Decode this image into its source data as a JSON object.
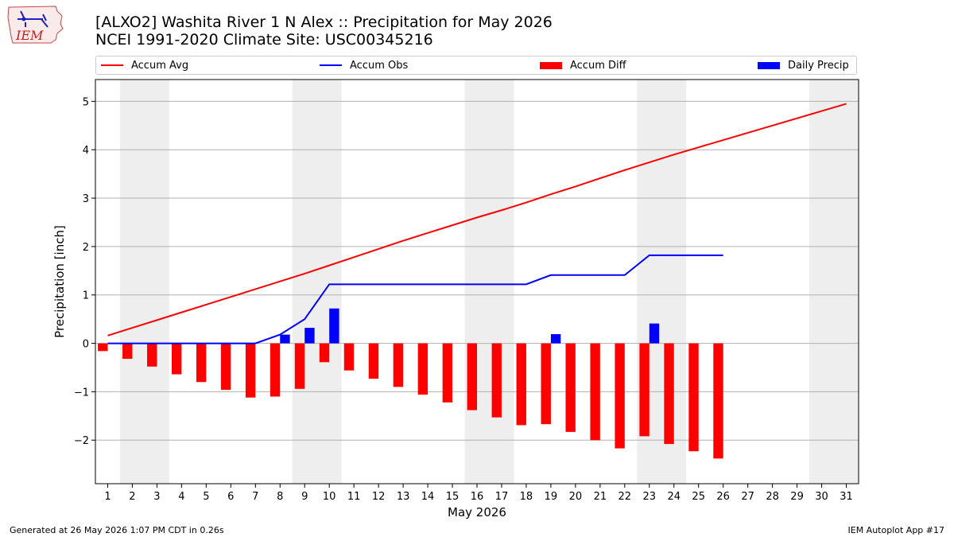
{
  "header": {
    "title_line1": "[ALXO2] Washita River 1 N Alex :: Precipitation for May 2026",
    "title_line2": "NCEI 1991-2020 Climate Site: USC00345216",
    "logo_text": "IEM"
  },
  "legend": [
    {
      "label": "Accum Avg",
      "kind": "line",
      "color": "#ff0000"
    },
    {
      "label": "Accum Obs",
      "kind": "line",
      "color": "#0000ff"
    },
    {
      "label": "Accum Diff",
      "kind": "bar",
      "color": "#ff0000"
    },
    {
      "label": "Daily Precip",
      "kind": "bar",
      "color": "#0000ff"
    }
  ],
  "footer": {
    "generated": "Generated at 26 May 2026 1:07 PM CDT in 0.26s",
    "app": "IEM Autoplot App #17"
  },
  "chart_data": {
    "type": "bar",
    "xlabel": "May 2026",
    "ylabel": "Precipitation [inch]",
    "xlim": [
      0.5,
      31.5
    ],
    "ylim": [
      -2.9,
      5.45
    ],
    "yticks": [
      5,
      4,
      3,
      2,
      1,
      0,
      -1,
      -2
    ],
    "ytick_labels": [
      "5",
      "4",
      "3",
      "2",
      "1",
      "0",
      "−1",
      "−2"
    ],
    "xticks": [
      1,
      2,
      3,
      4,
      5,
      6,
      7,
      8,
      9,
      10,
      11,
      12,
      13,
      14,
      15,
      16,
      17,
      18,
      19,
      20,
      21,
      22,
      23,
      24,
      25,
      26,
      27,
      28,
      29,
      30,
      31
    ],
    "grid": "horizontal",
    "weekend_shading": [
      [
        1.5,
        3.5
      ],
      [
        8.5,
        10.5
      ],
      [
        15.5,
        17.5
      ],
      [
        22.5,
        24.5
      ],
      [
        29.5,
        31.5
      ]
    ],
    "series": [
      {
        "name": "Accum Avg",
        "kind": "line",
        "color": "#ff0000",
        "x": [
          1,
          2,
          3,
          4,
          5,
          6,
          7,
          8,
          9,
          10,
          11,
          12,
          13,
          14,
          15,
          16,
          17,
          18,
          19,
          20,
          21,
          22,
          23,
          24,
          25,
          26,
          27,
          28,
          29,
          30,
          31
        ],
        "values": [
          0.16,
          0.32,
          0.48,
          0.64,
          0.8,
          0.96,
          1.12,
          1.28,
          1.44,
          1.61,
          1.78,
          1.95,
          2.12,
          2.28,
          2.44,
          2.6,
          2.75,
          2.91,
          3.08,
          3.24,
          3.41,
          3.58,
          3.74,
          3.9,
          4.05,
          4.2,
          4.35,
          4.5,
          4.65,
          4.8,
          4.95
        ]
      },
      {
        "name": "Accum Obs",
        "kind": "line",
        "color": "#0000ff",
        "x": [
          1,
          2,
          3,
          4,
          5,
          6,
          7,
          8,
          9,
          10,
          11,
          12,
          13,
          14,
          15,
          16,
          17,
          18,
          19,
          20,
          21,
          22,
          23,
          24,
          25,
          26
        ],
        "values": [
          0,
          0,
          0,
          0,
          0,
          0,
          0,
          0.18,
          0.5,
          1.22,
          1.22,
          1.22,
          1.22,
          1.22,
          1.22,
          1.22,
          1.22,
          1.22,
          1.41,
          1.41,
          1.41,
          1.41,
          1.82,
          1.82,
          1.82,
          1.82
        ]
      },
      {
        "name": "Accum Diff",
        "kind": "bar",
        "color": "#ff0000",
        "x": [
          1,
          2,
          3,
          4,
          5,
          6,
          7,
          8,
          9,
          10,
          11,
          12,
          13,
          14,
          15,
          16,
          17,
          18,
          19,
          20,
          21,
          22,
          23,
          24,
          25,
          26
        ],
        "values": [
          -0.16,
          -0.32,
          -0.48,
          -0.64,
          -0.8,
          -0.96,
          -1.12,
          -1.1,
          -0.94,
          -0.39,
          -0.56,
          -0.73,
          -0.9,
          -1.06,
          -1.22,
          -1.38,
          -1.53,
          -1.69,
          -1.67,
          -1.83,
          -2.0,
          -2.17,
          -1.92,
          -2.08,
          -2.23,
          -2.38
        ]
      },
      {
        "name": "Daily Precip",
        "kind": "bar",
        "color": "#0000ff",
        "x": [
          8,
          9,
          10,
          19,
          23
        ],
        "values": [
          0.18,
          0.32,
          0.72,
          0.19,
          0.41
        ]
      }
    ]
  }
}
